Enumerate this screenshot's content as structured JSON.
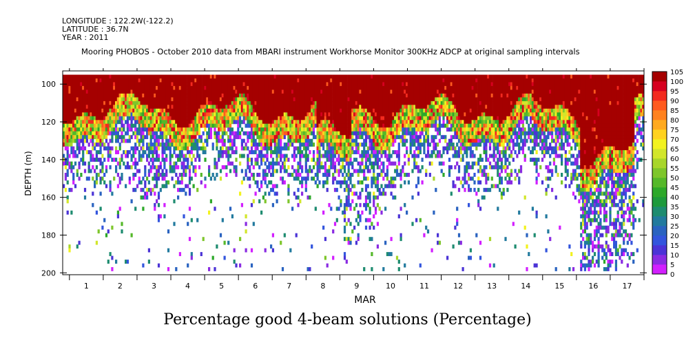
{
  "header": {
    "longitude": "LONGITUDE : 122.2W(-122.2)",
    "latitude": "LATITUDE : 36.7N",
    "year": "YEAR : 2011"
  },
  "chart_data": {
    "type": "heatmap",
    "title": "Mooring PHOBOS - October 2010 data from MBARI instrument Workhorse Monitor 300KHz ADCP at original sampling intervals",
    "subtitle": "Percentage good 4-beam solutions (Percentage)",
    "xlabel": "MAR",
    "ylabel": "DEPTH (m)",
    "x_ticks": [
      "1",
      "2",
      "3",
      "4",
      "5",
      "6",
      "7",
      "8",
      "9",
      "10",
      "11",
      "12",
      "13",
      "14",
      "15",
      "16",
      "17"
    ],
    "xlim": [
      0.3,
      17.5
    ],
    "y_ticks": [
      100,
      120,
      140,
      160,
      180,
      200
    ],
    "ylim": [
      93,
      201
    ],
    "depth_bins": [
      96,
      98,
      100,
      102,
      104,
      106,
      108,
      110,
      112,
      114,
      116,
      118,
      120,
      122,
      124,
      126,
      128,
      130,
      132,
      134,
      136,
      138,
      140,
      142,
      144,
      146,
      148,
      150,
      152,
      154,
      156,
      158,
      160,
      162,
      164,
      166,
      168,
      170,
      172,
      174,
      176,
      178,
      180,
      182,
      184,
      186,
      188,
      190,
      192,
      194,
      196,
      198
    ],
    "colorbar": {
      "levels": [
        0,
        5,
        10,
        15,
        20,
        25,
        30,
        35,
        40,
        45,
        50,
        55,
        60,
        65,
        70,
        75,
        80,
        85,
        90,
        95,
        100,
        105
      ],
      "colors": [
        "#d21fff",
        "#8a2be2",
        "#4b33d6",
        "#3355dd",
        "#2a63c0",
        "#227a9e",
        "#1e8c70",
        "#1e9a3c",
        "#2da82a",
        "#55b82a",
        "#7ec62b",
        "#a8d62b",
        "#d2e62b",
        "#f2f21f",
        "#ffd21f",
        "#ffaa1f",
        "#ff821f",
        "#ff5a1f",
        "#f22a1f",
        "#d6001f",
        "#a50000"
      ]
    }
  }
}
